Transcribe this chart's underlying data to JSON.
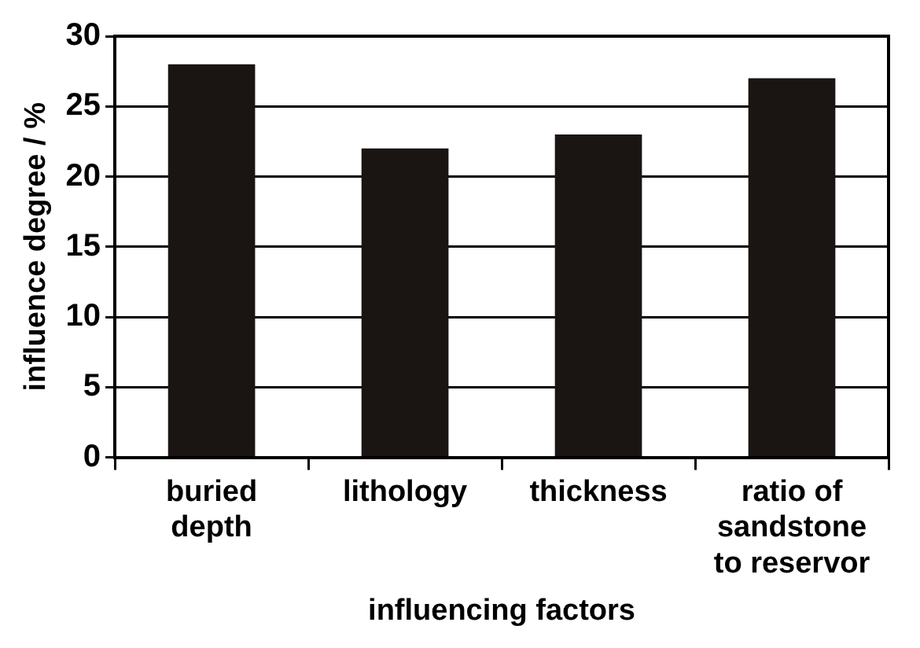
{
  "chart_data": {
    "type": "bar",
    "xlabel": "influencing factors",
    "ylabel": "influence degree / %",
    "categories": [
      "buried\ndepth",
      "lithology",
      "thickness",
      "ratio of\nsandstone\nto reservor"
    ],
    "values": [
      28,
      22,
      23,
      27
    ],
    "color": "#1a1513",
    "ylim": [
      0,
      30
    ],
    "yticks": [
      0,
      5,
      10,
      15,
      20,
      25,
      30
    ],
    "grid": "y",
    "legend": false
  }
}
